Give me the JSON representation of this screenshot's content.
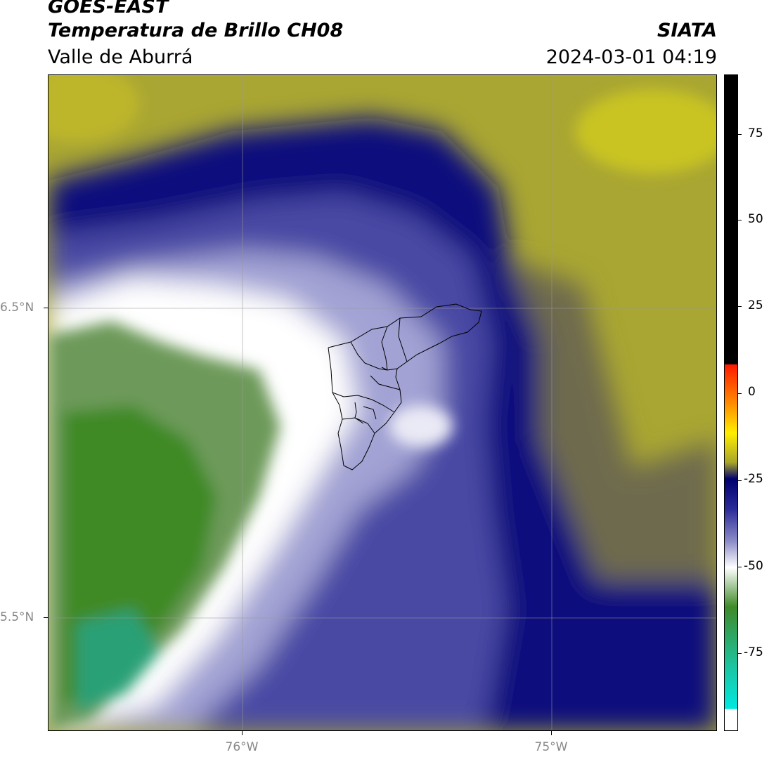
{
  "header": {
    "line1": "GOES-EAST",
    "line2": "Temperatura de Brillo CH08",
    "region": "Valle de Aburrá",
    "org": "SIATA",
    "datetime": "2024-03-01 04:19"
  },
  "axes": {
    "lat_ticks": [
      "6.5°N",
      "5.5°N"
    ],
    "lon_ticks": [
      "76°W",
      "75°W"
    ]
  },
  "colorbar": {
    "ticks": [
      "75",
      "50",
      "25",
      "0",
      "-25",
      "-50",
      "-75"
    ],
    "colors": {
      "black": "#000000",
      "red": "#ff1a00",
      "orange": "#ff8c00",
      "yellow": "#ffee00",
      "olive": "#a8a52a",
      "navy": "#00007a",
      "periwinkle": "#6a6ab8",
      "white": "#ffffff",
      "green": "#3f8a28",
      "teal": "#1cc4a0",
      "cyan": "#00e8e0"
    }
  }
}
